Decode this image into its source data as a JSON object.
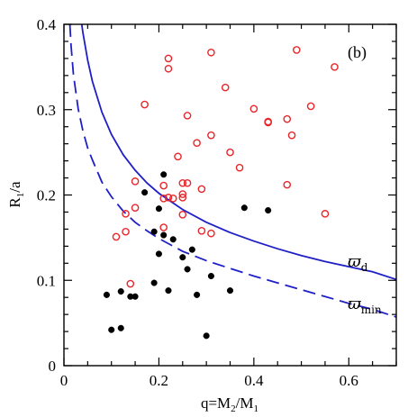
{
  "chart_data": {
    "type": "scatter",
    "title": "",
    "panel_label": "(b)",
    "xlabel": {
      "prefix": "q=M",
      "sub1": "2",
      "mid": "/M",
      "sub2": "1"
    },
    "ylabel": {
      "prefix": "R",
      "sub": "1",
      "suffix": "/a"
    },
    "xlim": [
      0,
      0.7
    ],
    "ylim": [
      0,
      0.4
    ],
    "x_ticks": [
      0,
      0.2,
      0.4,
      0.6
    ],
    "x_tick_labels": [
      "0",
      "0.2",
      "0.4",
      "0.6"
    ],
    "y_ticks": [
      0,
      0.1,
      0.2,
      0.3,
      0.4
    ],
    "y_tick_labels": [
      "0",
      "0.1",
      "0.2",
      "0.3",
      "0.4"
    ],
    "grid": false,
    "series": [
      {
        "marker": "open-circle",
        "color": "#e8252a",
        "points": [
          [
            0.22,
            0.36
          ],
          [
            0.22,
            0.348
          ],
          [
            0.31,
            0.367
          ],
          [
            0.49,
            0.37
          ],
          [
            0.57,
            0.35
          ],
          [
            0.34,
            0.326
          ],
          [
            0.17,
            0.306
          ],
          [
            0.4,
            0.301
          ],
          [
            0.52,
            0.304
          ],
          [
            0.26,
            0.293
          ],
          [
            0.43,
            0.286
          ],
          [
            0.43,
            0.285
          ],
          [
            0.47,
            0.289
          ],
          [
            0.31,
            0.27
          ],
          [
            0.28,
            0.261
          ],
          [
            0.48,
            0.27
          ],
          [
            0.35,
            0.25
          ],
          [
            0.24,
            0.245
          ],
          [
            0.37,
            0.232
          ],
          [
            0.15,
            0.216
          ],
          [
            0.25,
            0.214
          ],
          [
            0.26,
            0.214
          ],
          [
            0.21,
            0.211
          ],
          [
            0.29,
            0.207
          ],
          [
            0.47,
            0.212
          ],
          [
            0.25,
            0.201
          ],
          [
            0.22,
            0.197
          ],
          [
            0.21,
            0.196
          ],
          [
            0.23,
            0.196
          ],
          [
            0.25,
            0.197
          ],
          [
            0.15,
            0.185
          ],
          [
            0.13,
            0.178
          ],
          [
            0.25,
            0.177
          ],
          [
            0.55,
            0.178
          ],
          [
            0.21,
            0.162
          ],
          [
            0.13,
            0.157
          ],
          [
            0.29,
            0.158
          ],
          [
            0.11,
            0.151
          ],
          [
            0.31,
            0.155
          ],
          [
            0.14,
            0.096
          ]
        ]
      },
      {
        "marker": "filled-circle",
        "color": "#000000",
        "points": [
          [
            0.21,
            0.224
          ],
          [
            0.17,
            0.203
          ],
          [
            0.2,
            0.184
          ],
          [
            0.38,
            0.185
          ],
          [
            0.43,
            0.182
          ],
          [
            0.19,
            0.157
          ],
          [
            0.21,
            0.153
          ],
          [
            0.23,
            0.148
          ],
          [
            0.27,
            0.136
          ],
          [
            0.2,
            0.131
          ],
          [
            0.25,
            0.127
          ],
          [
            0.26,
            0.113
          ],
          [
            0.31,
            0.105
          ],
          [
            0.19,
            0.097
          ],
          [
            0.09,
            0.083
          ],
          [
            0.12,
            0.087
          ],
          [
            0.22,
            0.088
          ],
          [
            0.28,
            0.083
          ],
          [
            0.35,
            0.088
          ],
          [
            0.14,
            0.081
          ],
          [
            0.15,
            0.081
          ],
          [
            0.1,
            0.042
          ],
          [
            0.12,
            0.044
          ],
          [
            0.3,
            0.035
          ]
        ]
      }
    ],
    "curves": [
      {
        "style": "solid",
        "color": "#1f1fc8",
        "label": "ϖ",
        "label_sub": "d",
        "points": [
          [
            0.0375,
            0.4
          ],
          [
            0.04,
            0.39
          ],
          [
            0.05,
            0.358
          ],
          [
            0.06,
            0.333
          ],
          [
            0.08,
            0.297
          ],
          [
            0.1,
            0.271
          ],
          [
            0.125,
            0.247
          ],
          [
            0.15,
            0.229
          ],
          [
            0.175,
            0.214
          ],
          [
            0.2,
            0.202
          ],
          [
            0.25,
            0.183
          ],
          [
            0.3,
            0.168
          ],
          [
            0.35,
            0.156
          ],
          [
            0.4,
            0.146
          ],
          [
            0.45,
            0.137
          ],
          [
            0.5,
            0.129
          ],
          [
            0.55,
            0.122
          ],
          [
            0.6,
            0.116
          ],
          [
            0.65,
            0.11
          ],
          [
            0.7,
            0.101
          ]
        ]
      },
      {
        "style": "dashed",
        "color": "#1f1fc8",
        "label": "ϖ",
        "label_sub": "min",
        "points": [
          [
            0.0125,
            0.4
          ],
          [
            0.015,
            0.375
          ],
          [
            0.02,
            0.341
          ],
          [
            0.03,
            0.301
          ],
          [
            0.04,
            0.275
          ],
          [
            0.05,
            0.255
          ],
          [
            0.06,
            0.241
          ],
          [
            0.08,
            0.215
          ],
          [
            0.1,
            0.198
          ],
          [
            0.125,
            0.181
          ],
          [
            0.15,
            0.168
          ],
          [
            0.175,
            0.158
          ],
          [
            0.2,
            0.149
          ],
          [
            0.25,
            0.134
          ],
          [
            0.3,
            0.123
          ],
          [
            0.35,
            0.114
          ],
          [
            0.4,
            0.105
          ],
          [
            0.45,
            0.097
          ],
          [
            0.5,
            0.089
          ],
          [
            0.55,
            0.081
          ],
          [
            0.6,
            0.073
          ],
          [
            0.65,
            0.066
          ],
          [
            0.7,
            0.057
          ]
        ]
      }
    ]
  }
}
